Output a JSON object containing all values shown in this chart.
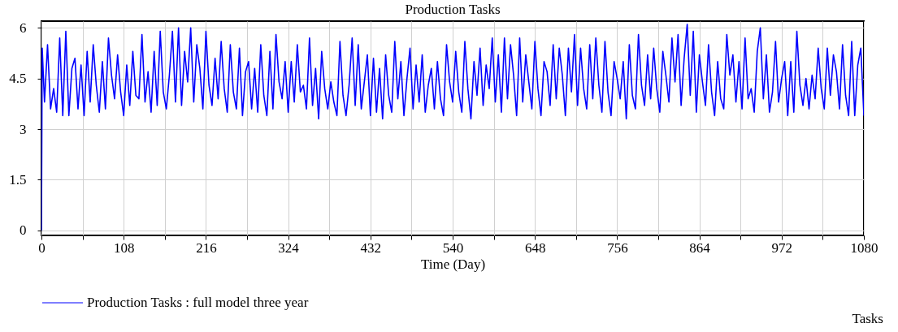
{
  "chart_data": {
    "type": "line",
    "title": "Production Tasks",
    "xlabel": "Time (Day)",
    "x": [
      0,
      1,
      4,
      8,
      12,
      16,
      20,
      24,
      28,
      32,
      36,
      40,
      44,
      48,
      52,
      56,
      60,
      64,
      68,
      72,
      76,
      80,
      84,
      88,
      92,
      96,
      100,
      104,
      108,
      112,
      116,
      120,
      124,
      128,
      132,
      136,
      140,
      144,
      148,
      152,
      156,
      160,
      164,
      168,
      172,
      176,
      180,
      184,
      188,
      192,
      196,
      200,
      204,
      208,
      212,
      216,
      220,
      224,
      228,
      232,
      236,
      240,
      244,
      248,
      252,
      256,
      260,
      264,
      268,
      272,
      276,
      280,
      284,
      288,
      292,
      296,
      300,
      304,
      308,
      312,
      316,
      320,
      324,
      328,
      332,
      336,
      340,
      344,
      348,
      352,
      356,
      360,
      364,
      368,
      372,
      376,
      380,
      384,
      388,
      392,
      396,
      400,
      404,
      408,
      412,
      416,
      420,
      424,
      428,
      432,
      436,
      440,
      444,
      448,
      452,
      456,
      460,
      464,
      468,
      472,
      476,
      480,
      484,
      488,
      492,
      496,
      500,
      504,
      508,
      512,
      516,
      520,
      524,
      528,
      532,
      536,
      540,
      544,
      548,
      552,
      556,
      560,
      564,
      568,
      572,
      576,
      580,
      584,
      588,
      592,
      596,
      600,
      604,
      608,
      612,
      616,
      620,
      624,
      628,
      632,
      636,
      640,
      644,
      648,
      652,
      656,
      660,
      664,
      668,
      672,
      676,
      680,
      684,
      688,
      692,
      696,
      700,
      704,
      708,
      712,
      716,
      720,
      724,
      728,
      732,
      736,
      740,
      744,
      748,
      752,
      756,
      760,
      764,
      768,
      772,
      776,
      780,
      784,
      788,
      792,
      796,
      800,
      804,
      808,
      812,
      816,
      820,
      824,
      828,
      832,
      836,
      840,
      844,
      848,
      852,
      856,
      860,
      864,
      868,
      872,
      876,
      880,
      884,
      888,
      892,
      896,
      900,
      904,
      908,
      912,
      916,
      920,
      924,
      928,
      932,
      936,
      940,
      944,
      948,
      952,
      956,
      960,
      964,
      968,
      972,
      976,
      980,
      984,
      988,
      992,
      996,
      1000,
      1004,
      1008,
      1012,
      1016,
      1020,
      1024,
      1028,
      1032,
      1036,
      1040,
      1044,
      1048,
      1052,
      1056,
      1060,
      1064,
      1068,
      1072,
      1076,
      1080
    ],
    "series": [
      {
        "name": "Production Tasks : full model three year",
        "color": "#0000ff",
        "values": [
          0,
          5.4,
          3.8,
          5.5,
          3.6,
          4.2,
          3.5,
          5.7,
          3.4,
          5.9,
          3.4,
          4.8,
          5.1,
          3.6,
          4.9,
          3.4,
          5.3,
          3.8,
          5.5,
          4.3,
          3.5,
          5.0,
          3.6,
          5.7,
          4.6,
          3.9,
          5.2,
          4.1,
          3.4,
          4.9,
          3.7,
          5.3,
          4.0,
          3.9,
          5.8,
          3.8,
          4.7,
          3.5,
          5.3,
          3.7,
          5.9,
          4.1,
          3.6,
          4.6,
          5.9,
          3.8,
          6.0,
          3.7,
          5.3,
          4.4,
          6.0,
          3.8,
          5.5,
          4.8,
          3.6,
          5.9,
          4.3,
          3.7,
          5.1,
          3.9,
          5.6,
          4.2,
          3.5,
          5.5,
          4.1,
          3.6,
          5.4,
          3.4,
          4.7,
          5.0,
          3.6,
          4.8,
          3.5,
          5.5,
          4.0,
          3.4,
          5.3,
          3.6,
          5.8,
          4.4,
          3.9,
          5.0,
          3.5,
          5.0,
          3.8,
          5.5,
          4.1,
          4.3,
          3.6,
          5.7,
          3.7,
          4.8,
          3.3,
          5.3,
          4.2,
          3.6,
          4.4,
          3.8,
          3.4,
          5.6,
          4.0,
          3.4,
          4.3,
          5.7,
          3.7,
          5.5,
          3.6,
          4.4,
          5.2,
          3.4,
          5.1,
          3.5,
          4.8,
          3.3,
          5.2,
          4.0,
          3.5,
          5.6,
          3.9,
          5.0,
          3.4,
          4.5,
          5.4,
          3.6,
          4.9,
          3.8,
          5.2,
          3.5,
          4.3,
          4.8,
          3.6,
          5.0,
          3.9,
          3.4,
          5.5,
          4.4,
          3.8,
          5.3,
          4.1,
          3.5,
          5.6,
          4.2,
          3.3,
          5.0,
          4.0,
          5.4,
          3.7,
          4.9,
          4.2,
          5.7,
          3.8,
          5.2,
          3.5,
          5.7,
          3.9,
          5.5,
          4.6,
          3.4,
          5.7,
          3.8,
          5.2,
          4.4,
          3.6,
          5.6,
          4.2,
          3.4,
          5.0,
          4.7,
          3.7,
          5.5,
          3.9,
          5.4,
          4.6,
          3.4,
          5.4,
          4.1,
          5.8,
          3.7,
          5.4,
          4.2,
          3.6,
          5.5,
          3.9,
          5.7,
          4.3,
          3.5,
          5.6,
          4.1,
          3.4,
          5.0,
          4.5,
          3.9,
          5.0,
          3.3,
          5.5,
          4.0,
          3.6,
          5.8,
          4.3,
          3.7,
          5.2,
          3.9,
          5.4,
          4.2,
          3.5,
          5.3,
          4.6,
          3.8,
          5.7,
          4.4,
          5.8,
          3.7,
          5.1,
          6.1,
          4.0,
          5.9,
          3.5,
          5.2,
          4.4,
          3.7,
          5.5,
          4.1,
          3.4,
          5.0,
          3.9,
          3.6,
          5.8,
          4.6,
          5.2,
          3.8,
          5.0,
          3.6,
          5.7,
          3.9,
          4.2,
          3.5,
          5.3,
          6.0,
          3.9,
          5.2,
          3.5,
          4.1,
          5.6,
          3.8,
          4.5,
          5.0,
          3.4,
          5.0,
          3.5,
          5.9,
          4.3,
          3.7,
          4.5,
          3.6,
          4.6,
          3.9,
          5.4,
          4.2,
          3.6,
          5.4,
          4.0,
          5.2,
          4.7,
          3.6,
          5.5,
          4.0,
          3.4,
          5.6,
          3.4,
          4.9,
          5.4,
          3.4
        ]
      }
    ],
    "xlim": [
      0,
      1080
    ],
    "xticks": [
      0,
      {
        "value": 54,
        "label": null
      },
      108,
      {
        "value": 162,
        "label": null
      },
      216,
      {
        "value": 270,
        "label": null
      },
      324,
      {
        "value": 378,
        "label": null
      },
      432,
      {
        "value": 486,
        "label": null
      },
      540,
      {
        "value": 594,
        "label": null
      },
      648,
      {
        "value": 702,
        "label": null
      },
      756,
      {
        "value": 810,
        "label": null
      },
      864,
      {
        "value": 918,
        "label": null
      },
      972,
      {
        "value": 1026,
        "label": null
      },
      1080
    ],
    "ylim": [
      -0.15,
      6.2
    ],
    "yticks": [
      0,
      1.5,
      3,
      4.5,
      6
    ],
    "grid": true,
    "legend": "bottom",
    "marker": "none",
    "line_style": "solid",
    "annotations": [
      "Tasks"
    ]
  }
}
